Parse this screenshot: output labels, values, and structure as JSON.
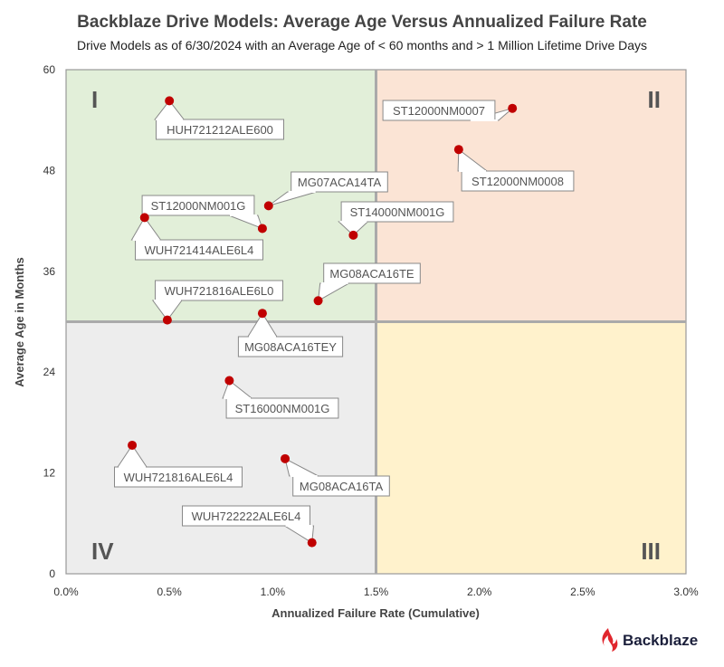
{
  "chart_data": {
    "type": "scatter",
    "title": "Backblaze Drive Models: Average Age Versus Annualized Failure Rate",
    "subtitle": "Drive Models as of 6/30/2024 with an Average Age of < 60 months and > 1 Million Lifetime Drive Days",
    "xlabel": "Annualized Failure Rate (Cumulative)",
    "ylabel": "Average Age in Months",
    "xlim": [
      0,
      3.0
    ],
    "ylim": [
      0,
      60
    ],
    "xticks": [
      "0.0%",
      "0.5%",
      "1.0%",
      "1.5%",
      "2.0%",
      "2.5%",
      "3.0%"
    ],
    "yticks": [
      "0",
      "12",
      "24",
      "36",
      "48",
      "60"
    ],
    "quadrant_split": {
      "x": 1.5,
      "y": 30
    },
    "quadrants": [
      {
        "label": "I",
        "color": "#e2efd9"
      },
      {
        "label": "II",
        "color": "#fbe4d5"
      },
      {
        "label": "III",
        "color": "#fff2cc"
      },
      {
        "label": "IV",
        "color": "#ededed"
      }
    ],
    "point_color": "#c00000",
    "points": [
      {
        "name": "HUH721212ALE600",
        "afr": 0.5,
        "age": 56.3
      },
      {
        "name": "ST12000NM0007",
        "afr": 2.16,
        "age": 55.4
      },
      {
        "name": "ST12000NM0008",
        "afr": 1.9,
        "age": 50.5
      },
      {
        "name": "MG07ACA14TA",
        "afr": 0.98,
        "age": 43.8
      },
      {
        "name": "ST12000NM001G",
        "afr": 0.95,
        "age": 41.1
      },
      {
        "name": "WUH721414ALE6L4",
        "afr": 0.38,
        "age": 42.4
      },
      {
        "name": "ST14000NM001G",
        "afr": 1.39,
        "age": 40.3
      },
      {
        "name": "MG08ACA16TE",
        "afr": 1.22,
        "age": 32.5
      },
      {
        "name": "WUH721816ALE6L0",
        "afr": 0.49,
        "age": 30.2
      },
      {
        "name": "MG08ACA16TEY",
        "afr": 0.95,
        "age": 31.0
      },
      {
        "name": "ST16000NM001G",
        "afr": 0.79,
        "age": 23.0
      },
      {
        "name": "WUH721816ALE6L4",
        "afr": 0.32,
        "age": 15.3
      },
      {
        "name": "MG08ACA16TA",
        "afr": 1.06,
        "age": 13.7
      },
      {
        "name": "WUH722222ALE6L4",
        "afr": 1.19,
        "age": 3.7
      }
    ]
  },
  "logo": {
    "text": "Backblaze",
    "color": "#1b1f3b",
    "flame_color": "#e0262d"
  }
}
